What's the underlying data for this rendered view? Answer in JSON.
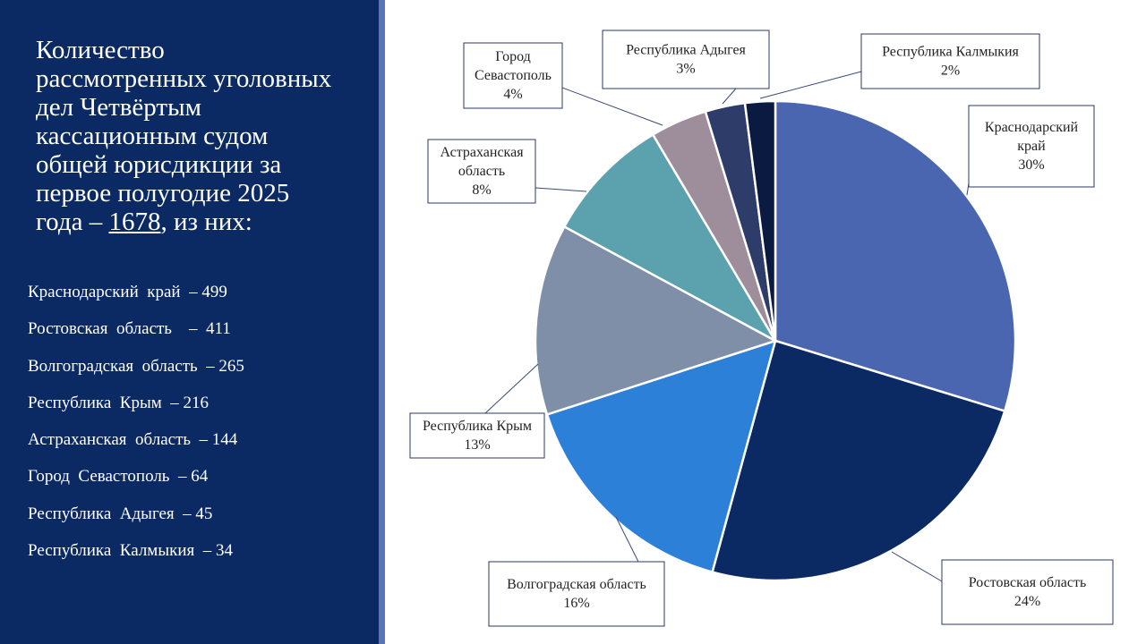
{
  "panel": {
    "title_lines": "Количество\nрассмотренных уголовных\nдел  Четвёртым\nкассационным судом\nобщей юрисдикции за\nпервое полугодие 2025\nгода – ",
    "total": "1678",
    "title_suffix": ", из них:",
    "items": [
      "Краснодарский  край  – 499",
      "Ростовская  область    –  411",
      "Волгоградская  область  – 265",
      "Республика  Крым  – 216",
      "Астраханская  область  – 144",
      "Город  Севастополь  – 64",
      "Республика  Адыгея  – 45",
      "Республика  Калмыкия  – 34"
    ]
  },
  "colors": {
    "panel_bg": "#0b2a63",
    "strip": "#5b74b4"
  },
  "chart_data": {
    "type": "pie",
    "title": "",
    "start_angle_deg": 0,
    "direction": "clockwise",
    "slices": [
      {
        "label": "Краснодарский край",
        "value": 499,
        "percent": "30%",
        "color": "#4a66b0"
      },
      {
        "label": "Ростовская область",
        "value": 411,
        "percent": "24%",
        "color": "#0b2a63"
      },
      {
        "label": "Волгоградская область",
        "value": 265,
        "percent": "16%",
        "color": "#2c80d8"
      },
      {
        "label": "Республика Крым",
        "value": 216,
        "percent": "13%",
        "color": "#808fa8"
      },
      {
        "label": "Астраханская область",
        "value": 144,
        "percent": "8%",
        "color": "#5ba2ae"
      },
      {
        "label": "Город Севастополь",
        "value": 64,
        "percent": "4%",
        "color": "#9e8e9c"
      },
      {
        "label": "Республика Адыгея",
        "value": 45,
        "percent": "3%",
        "color": "#2d3c68"
      },
      {
        "label": "Республика Калмыкия",
        "value": 34,
        "percent": "2%",
        "color": "#0a1a40"
      }
    ]
  }
}
